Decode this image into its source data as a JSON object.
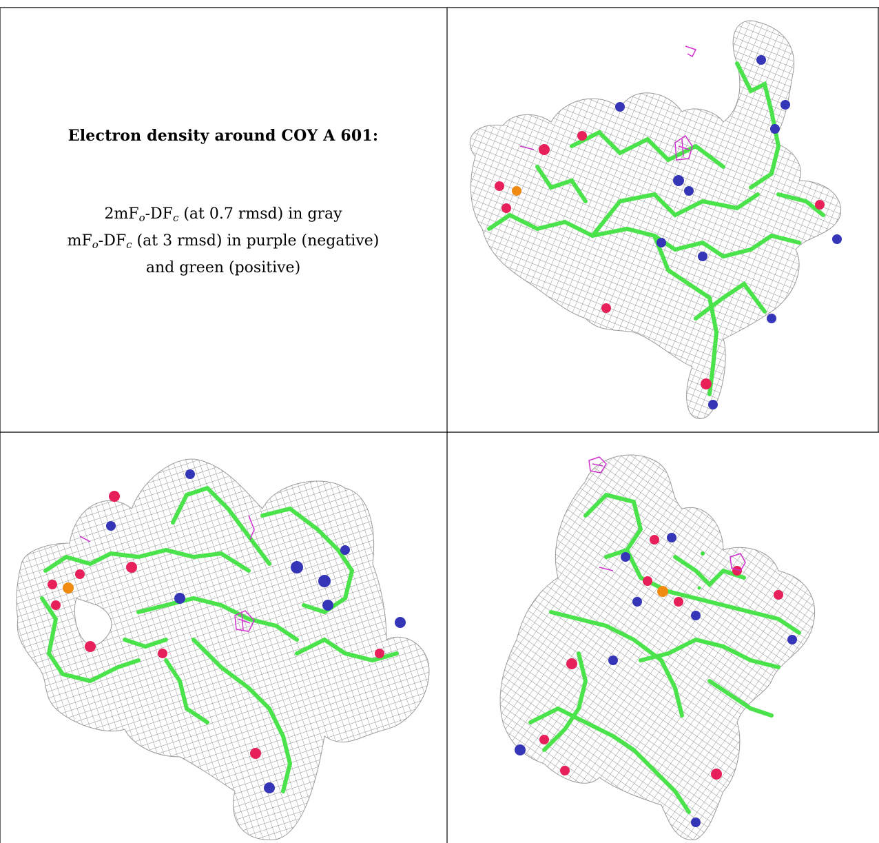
{
  "caption": {
    "title": "Electron density around COY A 601:",
    "line1": {
      "pre": "2mF",
      "sub1": "o",
      "mid": "-DF",
      "sub2": "c",
      "post": " (at 0.7 rmsd) in gray"
    },
    "line2": {
      "pre": "mF",
      "sub1": "o",
      "mid": "-DF",
      "sub2": "c",
      "post": " (at 3 rmsd) in purple (negative)"
    },
    "line3": "and green (positive)"
  },
  "colors": {
    "mesh": "#8a8a8a",
    "carbon": "#4be34b",
    "nitrogen": "#3535b8",
    "oxygen": "#e8205a",
    "phosphorus": "#f08a10",
    "difference_negative": "#d030d0",
    "difference_positive": "#40e040",
    "grid_lines": "#000000"
  },
  "panels": [
    {
      "icon": "electron-density-view-1"
    },
    {
      "icon": "electron-density-view-2"
    },
    {
      "icon": "electron-density-view-3"
    }
  ]
}
